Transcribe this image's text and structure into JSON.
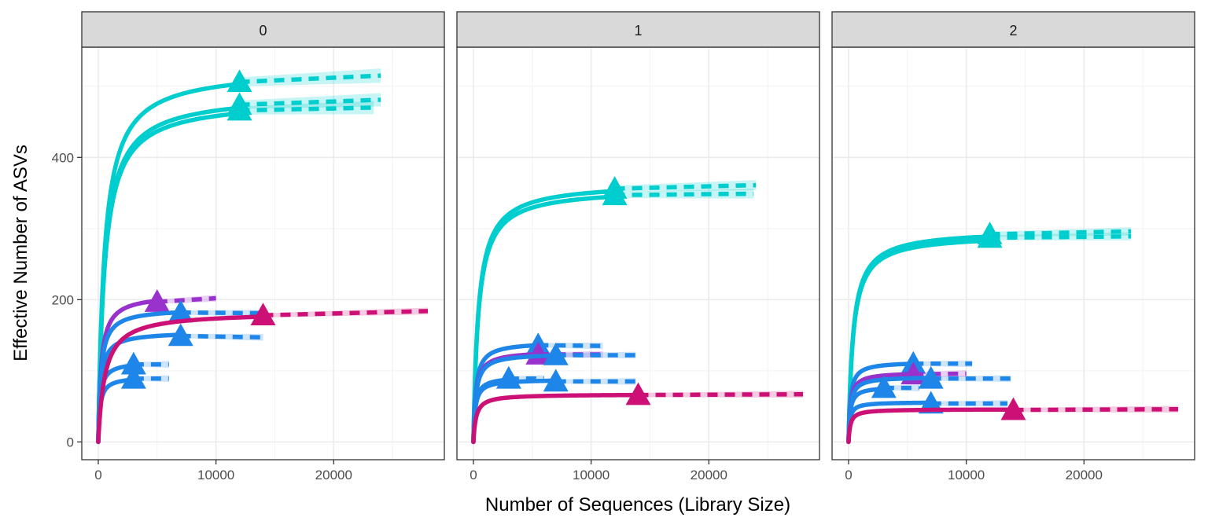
{
  "chart_data": {
    "type": "line",
    "xlabel": "Number of Sequences (Library Size)",
    "ylabel": "Effective Number of ASVs",
    "xlim": [
      -1400,
      29400
    ],
    "ylim": [
      -25,
      555
    ],
    "xticks": [
      0,
      10000,
      20000
    ],
    "xtick_labels": [
      "0",
      "10000",
      "20000"
    ],
    "yticks": [
      0,
      200,
      400
    ],
    "ytick_labels": [
      "0",
      "200",
      "400"
    ],
    "grid": true,
    "legend": "none",
    "line_styles": {
      "observed": "solid (rarefaction)",
      "estimated": "dashed (extrapolation)",
      "marker": "triangle at observed library size"
    },
    "colors": {
      "cyan": "#00CDCD",
      "blue": "#1E86E8",
      "purple": "#9932CC",
      "magenta": "#CD1076"
    },
    "panels": [
      {
        "strip": "0",
        "series": [
          {
            "color": "cyan",
            "n_obs": 12000,
            "n_max": 24000,
            "asymptote": 525,
            "k": 520,
            "v_obs": 506,
            "v_end": 515
          },
          {
            "color": "cyan",
            "n_obs": 12000,
            "n_max": 24000,
            "asymptote": 490,
            "k": 520,
            "v_obs": 474,
            "v_end": 481
          },
          {
            "color": "cyan",
            "n_obs": 12000,
            "n_max": 23400,
            "asymptote": 482,
            "k": 520,
            "v_obs": 466,
            "v_end": 470
          },
          {
            "color": "purple",
            "n_obs": 5000,
            "n_max": 10000,
            "asymptote": 208,
            "k": 240,
            "v_obs": 197,
            "v_end": 202
          },
          {
            "color": "blue",
            "n_obs": 7000,
            "n_max": 13800,
            "asymptote": 188,
            "k": 220,
            "v_obs": 182,
            "v_end": 181
          },
          {
            "color": "blue",
            "n_obs": 7000,
            "n_max": 14000,
            "asymptote": 155,
            "k": 200,
            "v_obs": 149,
            "v_end": 147
          },
          {
            "color": "blue",
            "n_obs": 3000,
            "n_max": 6000,
            "asymptote": 113,
            "k": 150,
            "v_obs": 109,
            "v_end": 109
          },
          {
            "color": "blue",
            "n_obs": 3000,
            "n_max": 6000,
            "asymptote": 92,
            "k": 150,
            "v_obs": 89,
            "v_end": 89
          },
          {
            "color": "magenta",
            "n_obs": 14000,
            "n_max": 28000,
            "asymptote": 183,
            "k": 550,
            "v_obs": 178,
            "v_end": 184
          }
        ]
      },
      {
        "strip": "1",
        "series": [
          {
            "color": "cyan",
            "n_obs": 12000,
            "n_max": 24000,
            "asymptote": 365,
            "k": 420,
            "v_obs": 356,
            "v_end": 361
          },
          {
            "color": "cyan",
            "n_obs": 12000,
            "n_max": 23800,
            "asymptote": 357,
            "k": 420,
            "v_obs": 347,
            "v_end": 349
          },
          {
            "color": "blue",
            "n_obs": 5500,
            "n_max": 11000,
            "asymptote": 141,
            "k": 200,
            "v_obs": 136,
            "v_end": 135
          },
          {
            "color": "purple",
            "n_obs": 5500,
            "n_max": 11000,
            "asymptote": 128,
            "k": 200,
            "v_obs": 123,
            "v_end": 123
          },
          {
            "color": "blue",
            "n_obs": 7000,
            "n_max": 13800,
            "asymptote": 125,
            "k": 200,
            "v_obs": 122,
            "v_end": 122
          },
          {
            "color": "blue",
            "n_obs": 3000,
            "n_max": 6000,
            "asymptote": 92,
            "k": 150,
            "v_obs": 89,
            "v_end": 89
          },
          {
            "color": "blue",
            "n_obs": 7000,
            "n_max": 13800,
            "asymptote": 88,
            "k": 150,
            "v_obs": 85,
            "v_end": 85
          },
          {
            "color": "magenta",
            "n_obs": 14000,
            "n_max": 28000,
            "asymptote": 67,
            "k": 220,
            "v_obs": 66,
            "v_end": 67
          }
        ]
      },
      {
        "strip": "2",
        "series": [
          {
            "color": "cyan",
            "n_obs": 12000,
            "n_max": 24000,
            "asymptote": 298,
            "k": 380,
            "v_obs": 292,
            "v_end": 296
          },
          {
            "color": "cyan",
            "n_obs": 12000,
            "n_max": 24000,
            "asymptote": 292,
            "k": 380,
            "v_obs": 287,
            "v_end": 289
          },
          {
            "color": "blue",
            "n_obs": 5500,
            "n_max": 10500,
            "asymptote": 113,
            "k": 150,
            "v_obs": 110,
            "v_end": 110
          },
          {
            "color": "purple",
            "n_obs": 5500,
            "n_max": 10000,
            "asymptote": 98,
            "k": 150,
            "v_obs": 95,
            "v_end": 96
          },
          {
            "color": "blue",
            "n_obs": 7000,
            "n_max": 13800,
            "asymptote": 92,
            "k": 150,
            "v_obs": 89,
            "v_end": 89
          },
          {
            "color": "blue",
            "n_obs": 3000,
            "n_max": 6000,
            "asymptote": 78,
            "k": 130,
            "v_obs": 76,
            "v_end": 76
          },
          {
            "color": "blue",
            "n_obs": 7000,
            "n_max": 13500,
            "asymptote": 56,
            "k": 110,
            "v_obs": 54,
            "v_end": 54
          },
          {
            "color": "magenta",
            "n_obs": 14000,
            "n_max": 28000,
            "asymptote": 46,
            "k": 150,
            "v_obs": 45,
            "v_end": 46
          }
        ]
      }
    ]
  }
}
